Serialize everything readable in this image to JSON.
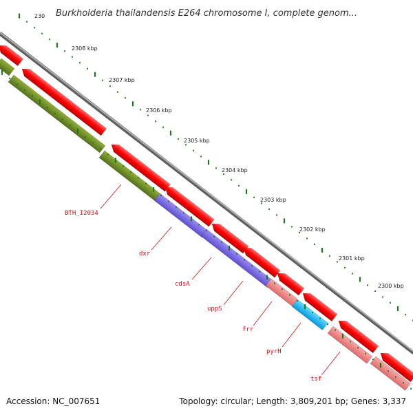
{
  "title": "Burkholderia thailandensis E264 chromosome I, complete genom...",
  "accession": "Accession: NC_007651",
  "topology": "Topology: circular; Length: 3,809,201 bp; Genes: 3,337",
  "colors": {
    "forward_gene": "#ff0000",
    "reverse_gene_olive": "#6b8e23",
    "reverse_gene_purple": "#7b68ee",
    "reverse_gene_pink": "#f08080",
    "reverse_gene_cyan": "#00bfff",
    "backbone": "#888888",
    "ticks": "#1a7a1a",
    "label": "#cc1111"
  },
  "ticks": [
    {
      "label": "2308 kbp"
    },
    {
      "label": "2307 kbp"
    },
    {
      "label": "2306 kbp"
    },
    {
      "label": "2305 kbp"
    },
    {
      "label": "2304 kbp"
    },
    {
      "label": "2303 kbp"
    },
    {
      "label": "2302 kbp"
    },
    {
      "label": "2301 kbp"
    },
    {
      "label": "2300 kbp"
    }
  ],
  "genes": [
    {
      "name": "BTH_I2034"
    },
    {
      "name": "dxr"
    },
    {
      "name": "cdsA"
    },
    {
      "name": "uppS"
    },
    {
      "name": "frr"
    },
    {
      "name": "pyrH"
    },
    {
      "name": "tsf"
    }
  ]
}
